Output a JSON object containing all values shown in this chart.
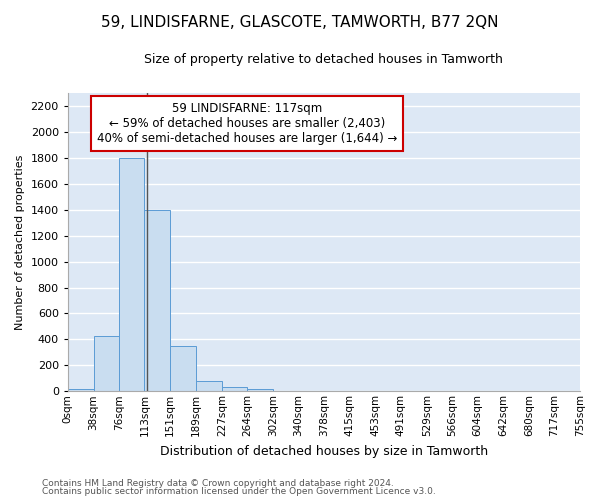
{
  "title": "59, LINDISFARNE, GLASCOTE, TAMWORTH, B77 2QN",
  "subtitle": "Size of property relative to detached houses in Tamworth",
  "xlabel": "Distribution of detached houses by size in Tamworth",
  "ylabel": "Number of detached properties",
  "bar_color": "#c9ddf0",
  "bar_edge_color": "#5b9bd5",
  "background_color": "#dde8f5",
  "grid_color": "#ffffff",
  "bin_edges": [
    0,
    38,
    76,
    113,
    151,
    189,
    227,
    264,
    302,
    340,
    378,
    415,
    453,
    491,
    529,
    566,
    604,
    642,
    680,
    717,
    755
  ],
  "bin_labels": [
    "0sqm",
    "38sqm",
    "76sqm",
    "113sqm",
    "151sqm",
    "189sqm",
    "227sqm",
    "264sqm",
    "302sqm",
    "340sqm",
    "378sqm",
    "415sqm",
    "453sqm",
    "491sqm",
    "529sqm",
    "566sqm",
    "604sqm",
    "642sqm",
    "680sqm",
    "717sqm",
    "755sqm"
  ],
  "bar_heights": [
    15,
    430,
    1800,
    1400,
    350,
    80,
    30,
    15,
    0,
    0,
    0,
    0,
    0,
    0,
    0,
    0,
    0,
    0,
    0,
    0
  ],
  "property_sqm": 117,
  "annotation_line1": "59 LINDISFARNE: 117sqm",
  "annotation_line2": "← 59% of detached houses are smaller (2,403)",
  "annotation_line3": "40% of semi-detached houses are larger (1,644) →",
  "annotation_box_color": "#ffffff",
  "annotation_border_color": "#cc0000",
  "vline_color": "#555555",
  "ylim": [
    0,
    2300
  ],
  "yticks": [
    0,
    200,
    400,
    600,
    800,
    1000,
    1200,
    1400,
    1600,
    1800,
    2000,
    2200
  ],
  "footer_line1": "Contains HM Land Registry data © Crown copyright and database right 2024.",
  "footer_line2": "Contains public sector information licensed under the Open Government Licence v3.0.",
  "title_fontsize": 11,
  "subtitle_fontsize": 9,
  "ylabel_fontsize": 8,
  "xlabel_fontsize": 9,
  "ytick_fontsize": 8,
  "xtick_fontsize": 7.5,
  "footer_fontsize": 6.5
}
